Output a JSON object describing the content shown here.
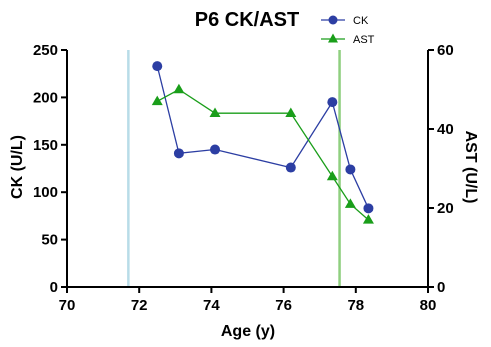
{
  "chart_data": {
    "type": "line",
    "title": "P6 CK/AST",
    "xlabel": "Age (y)",
    "ylabel_left": "CK (U/L)",
    "ylabel_right": "AST (U/L)",
    "xlim": [
      70,
      80
    ],
    "ylim_left": [
      0,
      250
    ],
    "ylim_right": [
      0,
      60
    ],
    "x_ticks": [
      70,
      72,
      74,
      76,
      78,
      80
    ],
    "y_ticks_left": [
      0,
      50,
      100,
      150,
      200,
      250
    ],
    "y_ticks_right": [
      0,
      20,
      40,
      60
    ],
    "grid": false,
    "legend_position": "top-right",
    "reference_lines": [
      {
        "x": 71.7,
        "color": "#b8dce8"
      },
      {
        "x": 77.55,
        "color": "#8fcf7f"
      }
    ],
    "series": [
      {
        "name": "CK",
        "axis": "left",
        "color": "#2c3ea3",
        "marker": "circle",
        "x": [
          72.5,
          73.1,
          74.1,
          76.2,
          77.35,
          77.85,
          78.35
        ],
        "y": [
          233,
          141,
          145,
          126,
          195,
          124,
          83
        ]
      },
      {
        "name": "AST",
        "axis": "right",
        "color": "#1a9e1a",
        "marker": "triangle",
        "x": [
          72.5,
          73.1,
          74.1,
          76.2,
          77.35,
          77.85,
          78.35
        ],
        "y": [
          47,
          50,
          44,
          44,
          28,
          21,
          17
        ]
      }
    ]
  }
}
